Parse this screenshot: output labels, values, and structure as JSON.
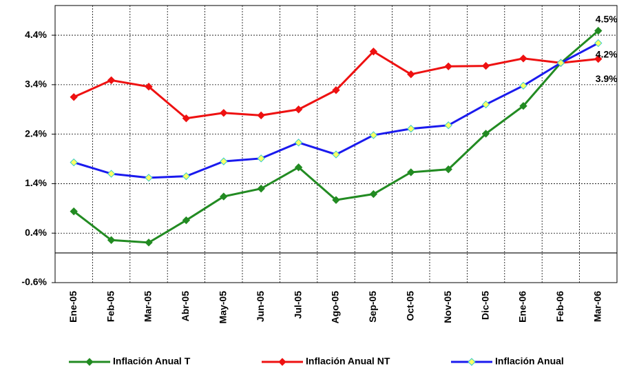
{
  "chart_data": {
    "type": "line",
    "categories": [
      "Ene-05",
      "Feb-05",
      "Mar-05",
      "Abr-05",
      "May-05",
      "Jun-05",
      "Jul-05",
      "Ago-05",
      "Sep-05",
      "Oct-05",
      "Nov-05",
      "Dic-05",
      "Ene-06",
      "Feb-06",
      "Mar-06"
    ],
    "ylim": [
      -0.6,
      5.0
    ],
    "yticks": [
      {
        "value": -0.6,
        "label": "-0.6%"
      },
      {
        "value": 0.4,
        "label": "0.4%"
      },
      {
        "value": 1.4,
        "label": "1.4%"
      },
      {
        "value": 2.4,
        "label": "2.4%"
      },
      {
        "value": 3.4,
        "label": "3.4%"
      },
      {
        "value": 4.4,
        "label": "4.4%"
      }
    ],
    "grid": true,
    "legend": "bottom",
    "series": [
      {
        "name": "Inflación Anual T",
        "color": "#228b22",
        "marker_fill": "#228b22",
        "values": [
          0.84,
          0.26,
          0.21,
          0.66,
          1.14,
          1.3,
          1.73,
          1.07,
          1.19,
          1.63,
          1.69,
          2.41,
          2.97,
          3.84,
          4.49
        ],
        "value_labels": [
          null,
          null,
          null,
          null,
          null,
          null,
          null,
          null,
          null,
          null,
          null,
          null,
          null,
          null,
          "4.5%"
        ]
      },
      {
        "name": "Inflación Anual NT",
        "color": "#ee1111",
        "marker_fill": "#ee1111",
        "values": [
          3.15,
          3.49,
          3.36,
          2.72,
          2.83,
          2.78,
          2.9,
          3.29,
          4.07,
          3.61,
          3.77,
          3.78,
          3.93,
          3.84,
          3.92
        ],
        "value_labels": [
          null,
          null,
          null,
          null,
          null,
          null,
          null,
          null,
          null,
          null,
          null,
          null,
          null,
          null,
          "3.9%"
        ]
      },
      {
        "name": "Inflación Anual",
        "color": "#1a1aee",
        "marker_fill": "#ffff66",
        "values": [
          1.83,
          1.6,
          1.52,
          1.55,
          1.85,
          1.91,
          2.23,
          1.99,
          2.38,
          2.51,
          2.58,
          3.0,
          3.38,
          3.84,
          4.24
        ],
        "value_labels": [
          null,
          null,
          null,
          null,
          null,
          null,
          null,
          null,
          null,
          null,
          null,
          null,
          null,
          null,
          "4.2%"
        ]
      }
    ]
  }
}
